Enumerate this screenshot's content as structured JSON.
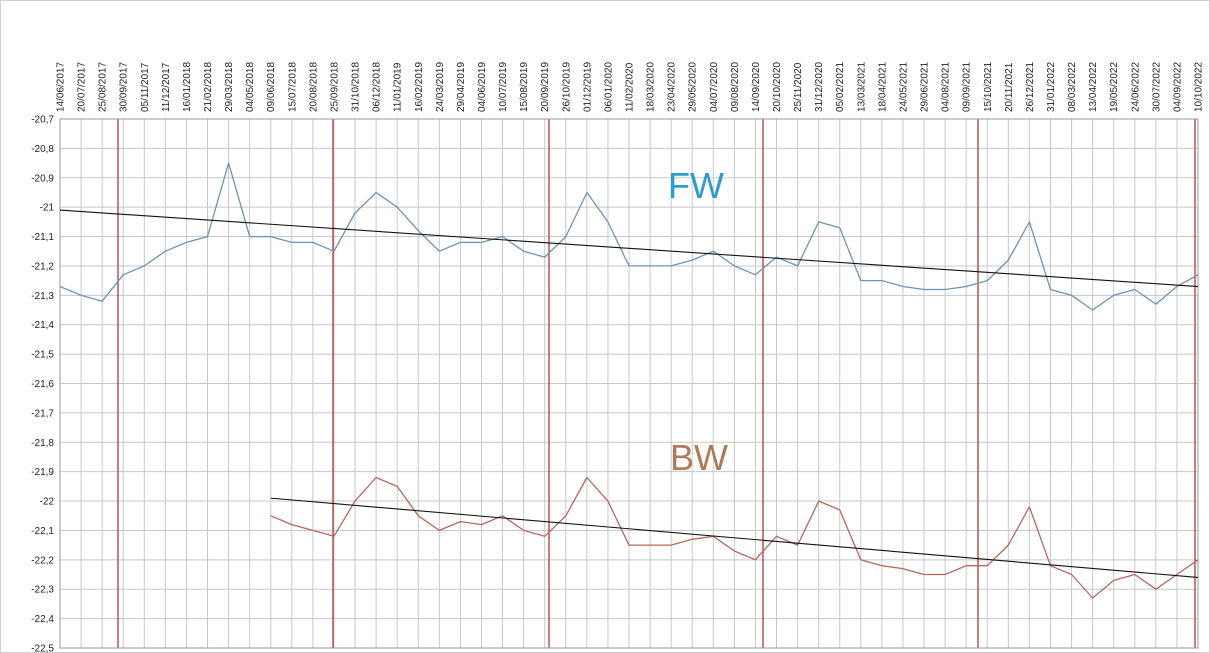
{
  "chart_data": {
    "type": "line",
    "categories": [
      "14/06/2017",
      "20/07/2017",
      "25/08/2017",
      "30/09/2017",
      "05/11/2017",
      "11/12/2017",
      "16/01/2018",
      "21/02/2018",
      "29/03/2018",
      "04/05/2018",
      "09/06/2018",
      "15/07/2018",
      "20/08/2018",
      "25/09/2018",
      "31/10/2018",
      "06/12/2018",
      "11/01/2019",
      "16/02/2019",
      "24/03/2019",
      "29/04/2019",
      "04/06/2019",
      "10/07/2019",
      "15/08/2019",
      "20/09/2019",
      "26/10/2019",
      "01/12/2019",
      "06/01/2020",
      "11/02/2020",
      "18/03/2020",
      "23/04/2020",
      "29/05/2020",
      "04/07/2020",
      "09/08/2020",
      "14/09/2020",
      "20/10/2020",
      "25/11/2020",
      "31/12/2020",
      "05/02/2021",
      "13/03/2021",
      "18/04/2021",
      "24/05/2021",
      "29/06/2021",
      "04/08/2021",
      "09/09/2021",
      "15/10/2021",
      "20/11/2021",
      "26/12/2021",
      "31/01/2022",
      "08/03/2022",
      "13/04/2022",
      "19/05/2022",
      "24/06/2022",
      "30/07/2022",
      "04/09/2022",
      "10/10/2022"
    ],
    "series": [
      {
        "name": "FW",
        "color": "#6f93b3",
        "label_color": "#2e9ccc",
        "trend": [
          -21.01,
          -21.27
        ],
        "values": [
          -21.27,
          -21.3,
          -21.32,
          -21.23,
          -21.2,
          -21.15,
          -21.12,
          -21.1,
          -20.85,
          -21.1,
          -21.1,
          -21.12,
          -21.12,
          -21.15,
          -21.02,
          -20.95,
          -21.0,
          -21.08,
          -21.15,
          -21.12,
          -21.12,
          -21.1,
          -21.15,
          -21.17,
          -21.1,
          -20.95,
          -21.05,
          -21.2,
          -21.2,
          -21.2,
          -21.18,
          -21.15,
          -21.2,
          -21.23,
          -21.17,
          -21.2,
          -21.05,
          -21.07,
          -21.25,
          -21.25,
          -21.27,
          -21.28,
          -21.28,
          -21.27,
          -21.25,
          -21.18,
          -21.05,
          -21.28,
          -21.3,
          -21.35,
          -21.3,
          -21.28,
          -21.33,
          -21.27,
          -21.23
        ]
      },
      {
        "name": "BW",
        "color": "#b5685e",
        "label_color": "#b07a5a",
        "trend": [
          -21.99,
          -22.26
        ],
        "values": [
          null,
          null,
          null,
          null,
          null,
          null,
          null,
          null,
          null,
          null,
          -22.05,
          -22.08,
          -22.1,
          -22.12,
          -22.0,
          -21.92,
          -21.95,
          -22.05,
          -22.1,
          -22.07,
          -22.08,
          -22.05,
          -22.1,
          -22.12,
          -22.05,
          -21.92,
          -22.0,
          -22.15,
          -22.15,
          -22.15,
          -22.13,
          -22.12,
          -22.17,
          -22.2,
          -22.12,
          -22.15,
          -22.0,
          -22.03,
          -22.2,
          -22.22,
          -22.23,
          -22.25,
          -22.25,
          -22.22,
          -22.22,
          -22.15,
          -22.02,
          -22.22,
          -22.25,
          -22.33,
          -22.27,
          -22.25,
          -22.3,
          -22.25,
          -22.2
        ]
      }
    ],
    "ylim": [
      -22.5,
      -20.7
    ],
    "yticks": [
      {
        "value": -20.7,
        "label": "-20,7"
      },
      {
        "value": -20.8,
        "label": "-20,8"
      },
      {
        "value": -20.9,
        "label": "-20,9"
      },
      {
        "value": -21,
        "label": "-21"
      },
      {
        "value": -21.1,
        "label": "-21,1"
      },
      {
        "value": -21.2,
        "label": "-21,2"
      },
      {
        "value": -21.3,
        "label": "-21,3"
      },
      {
        "value": -21.4,
        "label": "-21,4"
      },
      {
        "value": -21.5,
        "label": "-21,5"
      },
      {
        "value": -21.6,
        "label": "-21,6"
      },
      {
        "value": -21.7,
        "label": "-21,7"
      },
      {
        "value": -21.8,
        "label": "-21,8"
      },
      {
        "value": -21.9,
        "label": "-21,9"
      },
      {
        "value": -22,
        "label": "-22"
      },
      {
        "value": -22.1,
        "label": "-22,1"
      },
      {
        "value": -22.2,
        "label": "-22,2"
      },
      {
        "value": -22.3,
        "label": "-22,3"
      },
      {
        "value": -22.4,
        "label": "-22,4"
      },
      {
        "value": -22.5,
        "label": "-22,5"
      }
    ],
    "grid": true
  }
}
